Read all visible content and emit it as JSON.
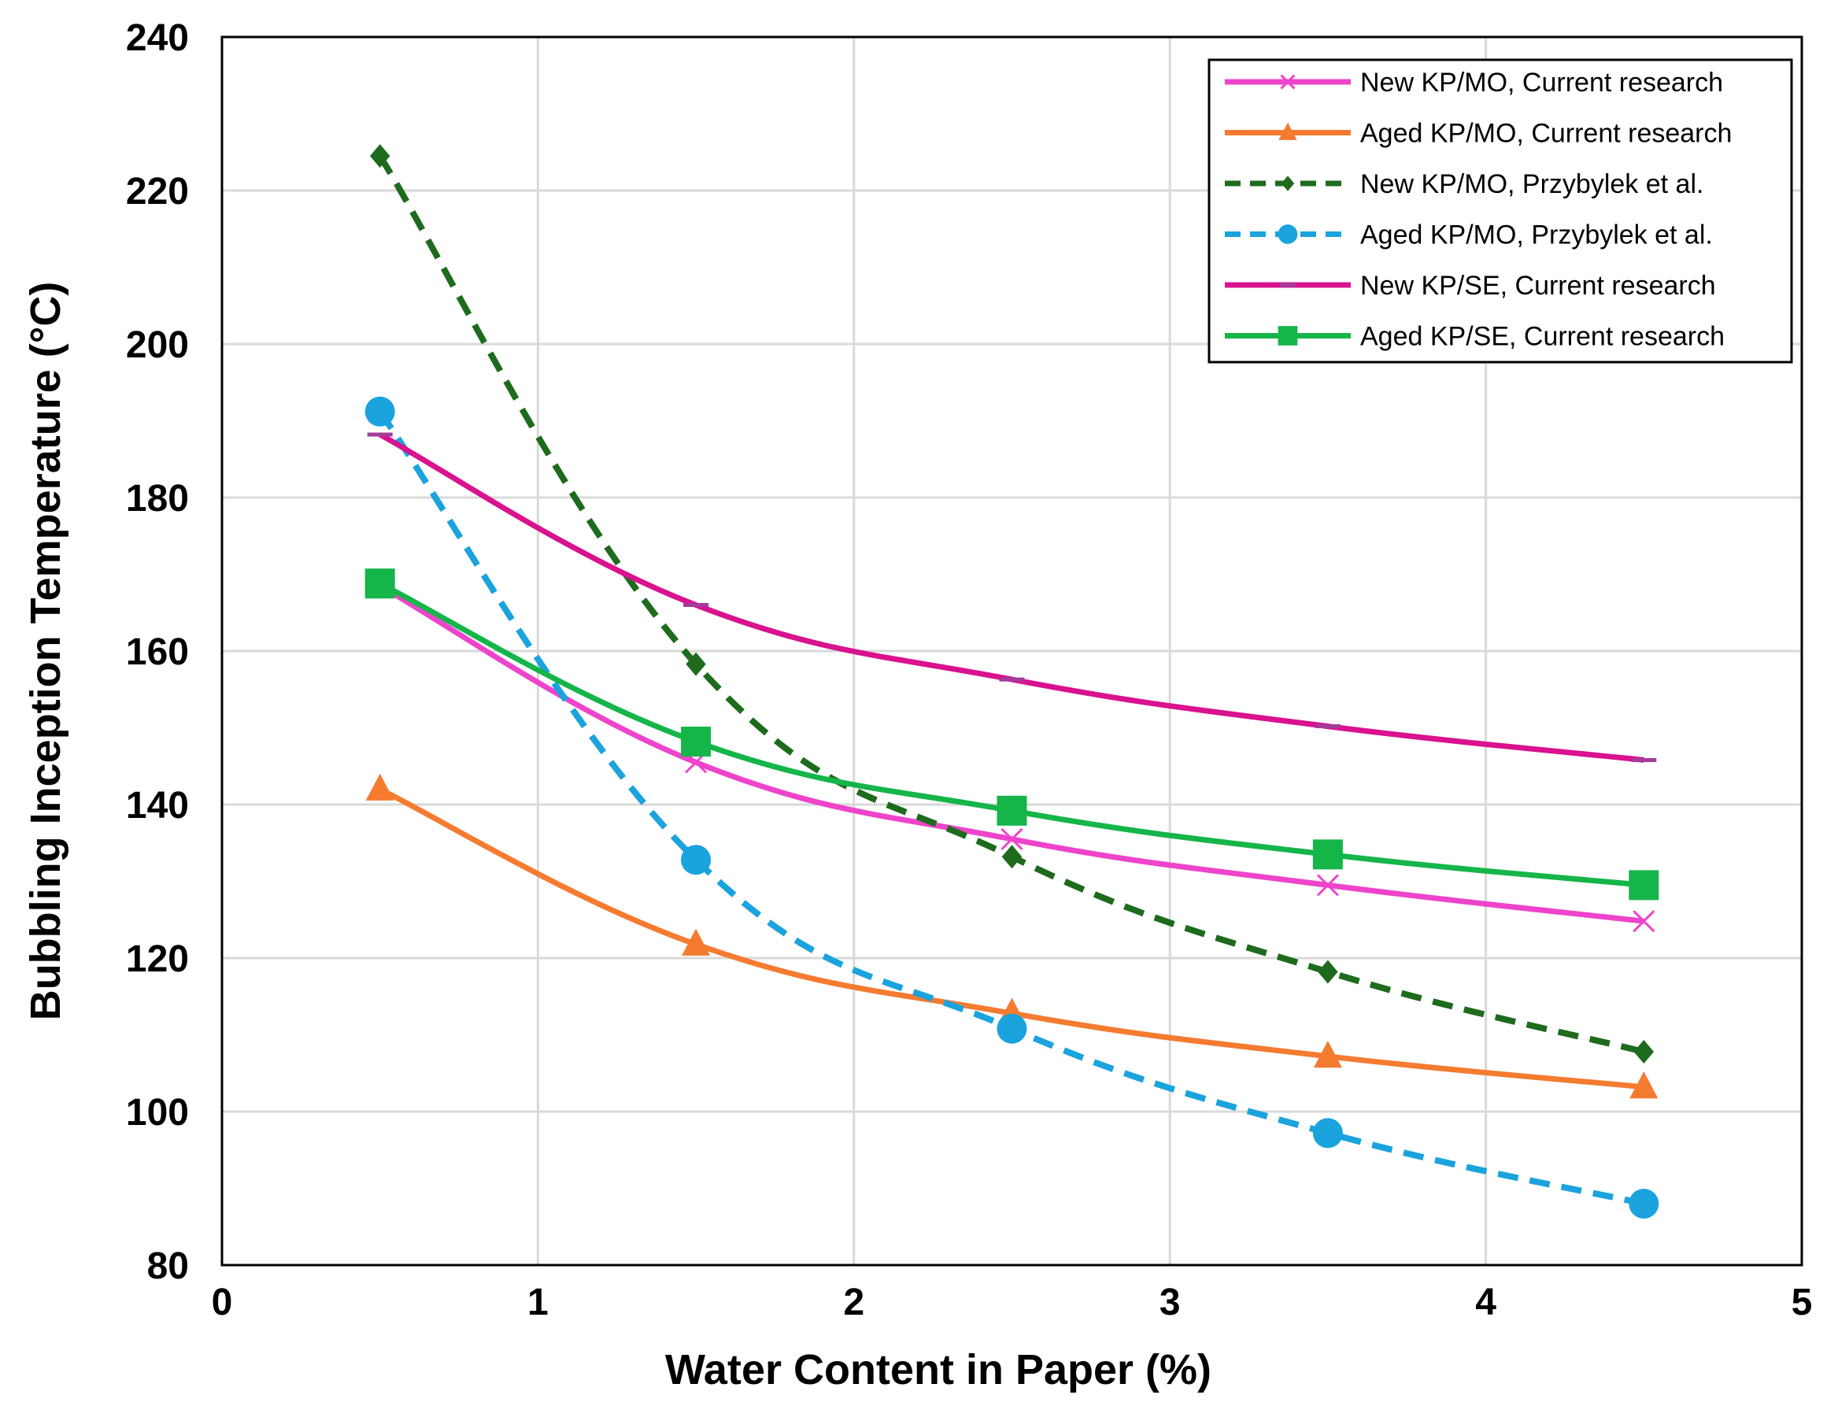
{
  "chart_data": {
    "type": "line",
    "title": "",
    "xlabel": "Water Content in Paper (%)",
    "ylabel": "Bubbling Inception Temperature (°C)",
    "xlim": [
      0,
      5
    ],
    "ylim": [
      80,
      240
    ],
    "xticks": [
      0,
      1,
      2,
      3,
      4,
      5
    ],
    "yticks": [
      80,
      100,
      120,
      140,
      160,
      180,
      200,
      220,
      240
    ],
    "grid": true,
    "legend_position": "top-right",
    "x": [
      0.5,
      1.5,
      2.5,
      3.5,
      4.5
    ],
    "series": [
      {
        "name": "New KP/MO, Current research",
        "values": [
          168.5,
          145.5,
          135.5,
          129.5,
          124.8
        ],
        "color": "#EE44CC",
        "marker": "x",
        "dash": "solid"
      },
      {
        "name": "Aged KP/MO, Current research",
        "values": [
          142,
          121.8,
          112.8,
          107.2,
          103.2
        ],
        "color": "#F47B30",
        "marker": "triangle",
        "dash": "solid"
      },
      {
        "name": "New KP/MO, Przybylek et al.",
        "values": [
          224.5,
          158.3,
          133.2,
          118.2,
          107.8
        ],
        "color": "#1E6B1E",
        "marker": "diamond",
        "dash": "dashed"
      },
      {
        "name": "Aged KP/MO, Przybylek et al.",
        "values": [
          191.2,
          132.8,
          110.8,
          97.2,
          88
        ],
        "color": "#1AA3DD",
        "marker": "circle",
        "dash": "dashed"
      },
      {
        "name": "New KP/SE, Current research",
        "values": [
          188.2,
          166,
          156.3,
          150.2,
          145.8
        ],
        "color": "#D9128F",
        "marker": "dash",
        "dash": "solid"
      },
      {
        "name": "Aged KP/SE, Current research",
        "values": [
          168.8,
          148.2,
          139.2,
          133.5,
          129.5
        ],
        "color": "#16B54A",
        "marker": "square",
        "dash": "solid"
      }
    ]
  }
}
